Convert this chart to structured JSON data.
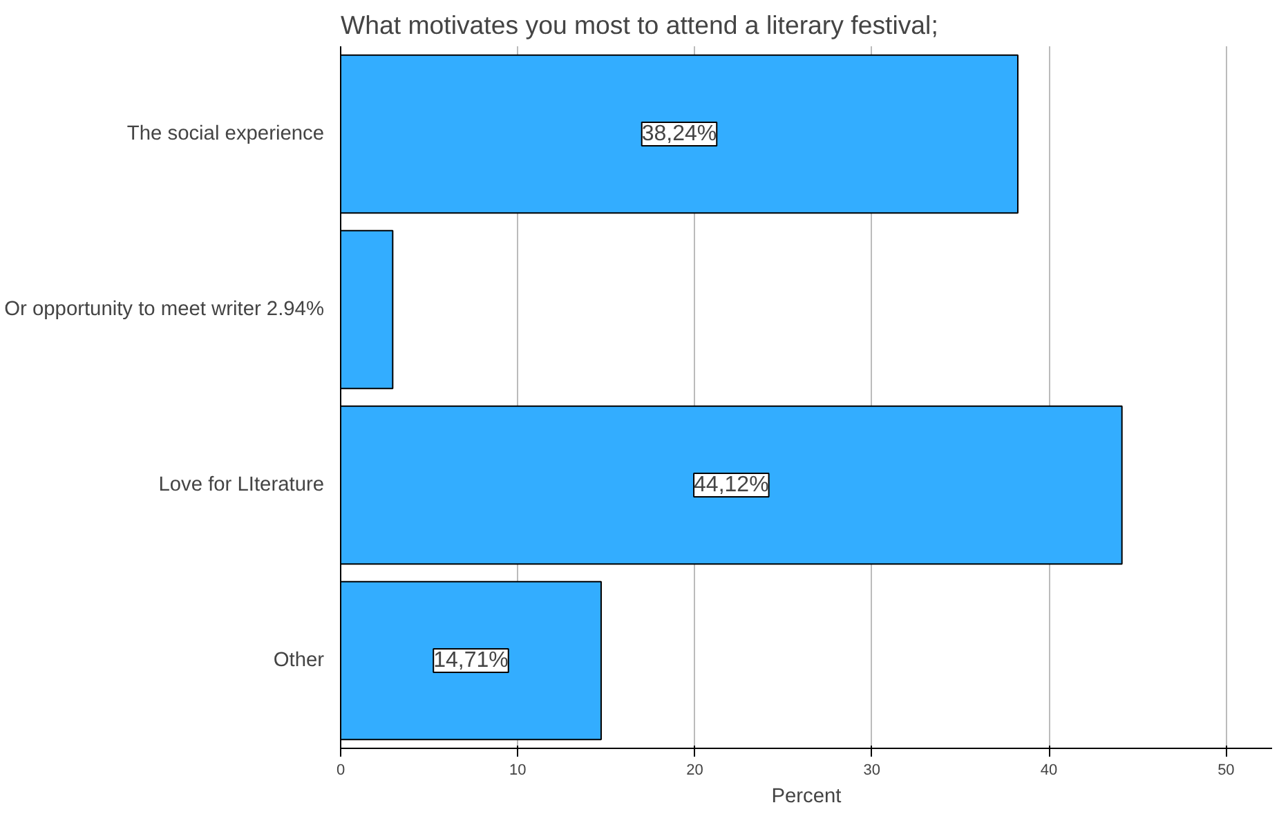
{
  "chart_data": {
    "type": "bar",
    "orientation": "horizontal",
    "title": "What motivates you most to attend a literary festival;",
    "xlabel": "Percent",
    "categories": [
      "The social experience",
      "Or opportunity to meet writer 2.94%",
      "Love for LIterature",
      "Other"
    ],
    "values": [
      38.24,
      2.94,
      44.12,
      14.71
    ],
    "value_labels": [
      "38,24%",
      null,
      "44,12%",
      "14,71%"
    ],
    "color": "#33adff",
    "xlim": [
      0,
      52.6
    ],
    "xticks": [
      0,
      10,
      20,
      30,
      40,
      50
    ],
    "grid": "x"
  }
}
